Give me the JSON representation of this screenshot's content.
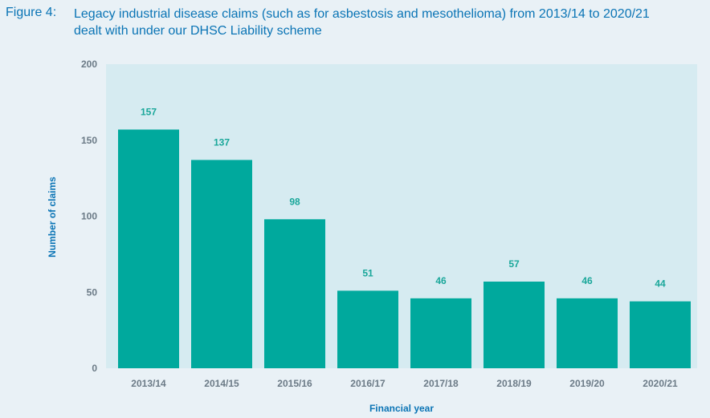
{
  "figure": {
    "label": "Figure 4:",
    "title_line1": "Legacy industrial disease claims (such as for asbestosis and mesothelioma) from 2013/14 to 2020/21",
    "title_line2": "dealt with under our DHSC Liability scheme"
  },
  "colors": {
    "bar": "#00a99d",
    "plot_background": "#d6ebf1",
    "page_background": "#e9f1f6",
    "title": "#0a74b5",
    "data_label": "#1aa79a",
    "tick_label": "#6b7a86"
  },
  "chart_data": {
    "type": "bar",
    "categories": [
      "2013/14",
      "2014/15",
      "2015/16",
      "2016/17",
      "2017/18",
      "2018/19",
      "2019/20",
      "2020/21"
    ],
    "values": [
      157,
      137,
      98,
      51,
      46,
      57,
      46,
      44
    ],
    "xlabel": "Financial year",
    "ylabel": "Number of claims",
    "ylim": [
      0,
      200
    ],
    "yticks": [
      0,
      50,
      100,
      150,
      200
    ],
    "grid": false,
    "legend": "none"
  }
}
